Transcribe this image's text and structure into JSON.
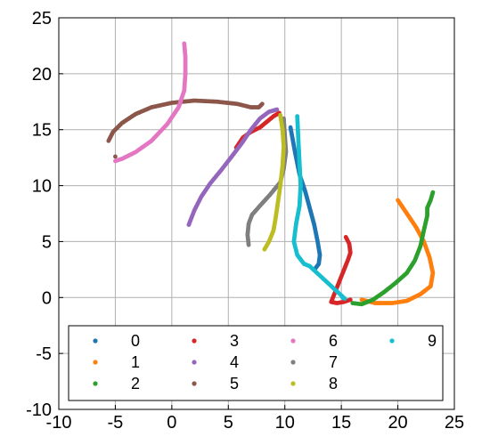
{
  "chart_data": {
    "type": "scatter",
    "title": "",
    "xlabel": "",
    "ylabel": "",
    "xlim": [
      -10,
      25
    ],
    "ylim": [
      -10,
      25
    ],
    "xticks": [
      -10,
      -5,
      0,
      5,
      10,
      15,
      20,
      25
    ],
    "yticks": [
      -10,
      -5,
      0,
      5,
      10,
      15,
      20,
      25
    ],
    "grid": true,
    "legend_position": "bottom",
    "series": [
      {
        "name": "0",
        "color": "#1f77b4",
        "points": [
          [
            10.5,
            15.2
          ],
          [
            10.9,
            13.0
          ],
          [
            11.3,
            11.0
          ],
          [
            11.8,
            9.5
          ],
          [
            12.2,
            8.0
          ],
          [
            12.6,
            6.5
          ],
          [
            12.9,
            5.0
          ],
          [
            13.1,
            3.8
          ],
          [
            13.0,
            3.0
          ],
          [
            12.7,
            2.6
          ]
        ]
      },
      {
        "name": "1",
        "color": "#ff7f0e",
        "points": [
          [
            20.0,
            8.7
          ],
          [
            20.8,
            7.5
          ],
          [
            21.6,
            6.3
          ],
          [
            22.3,
            5.0
          ],
          [
            22.8,
            3.6
          ],
          [
            23.1,
            2.2
          ],
          [
            22.9,
            1.0
          ],
          [
            22.0,
            0.3
          ],
          [
            20.8,
            -0.3
          ],
          [
            19.5,
            -0.5
          ],
          [
            18.0,
            -0.5
          ],
          [
            16.8,
            -0.2
          ]
        ]
      },
      {
        "name": "2",
        "color": "#2ca02c",
        "points": [
          [
            16.0,
            -0.5
          ],
          [
            16.8,
            -0.6
          ],
          [
            17.8,
            -0.2
          ],
          [
            18.8,
            0.5
          ],
          [
            19.8,
            1.3
          ],
          [
            20.8,
            2.2
          ],
          [
            21.5,
            3.3
          ],
          [
            22.0,
            4.6
          ],
          [
            22.3,
            6.0
          ],
          [
            22.6,
            7.3
          ],
          [
            22.6,
            8.0
          ],
          [
            22.9,
            8.7
          ],
          [
            23.1,
            9.4
          ]
        ]
      },
      {
        "name": "3",
        "color": "#d62728",
        "points": [
          [
            5.7,
            13.4
          ],
          [
            6.3,
            14.3
          ],
          [
            7.0,
            14.8
          ],
          [
            7.8,
            15.2
          ],
          [
            8.4,
            15.7
          ],
          [
            9.0,
            16.2
          ],
          [
            9.5,
            16.5
          ],
          [
            15.4,
            5.4
          ],
          [
            15.7,
            4.8
          ],
          [
            15.8,
            4.0
          ],
          [
            15.6,
            3.4
          ],
          [
            14.1,
            -0.4
          ],
          [
            14.6,
            -0.5
          ],
          [
            15.2,
            -0.4
          ],
          [
            15.8,
            -0.2
          ]
        ]
      },
      {
        "name": "4",
        "color": "#9467bd",
        "points": [
          [
            1.5,
            6.5
          ],
          [
            2.0,
            7.8
          ],
          [
            2.6,
            9.0
          ],
          [
            3.4,
            10.2
          ],
          [
            4.3,
            11.3
          ],
          [
            5.3,
            12.6
          ],
          [
            6.2,
            13.8
          ],
          [
            7.0,
            15.0
          ],
          [
            7.8,
            16.0
          ],
          [
            8.6,
            16.6
          ],
          [
            9.3,
            16.8
          ]
        ]
      },
      {
        "name": "5",
        "color": "#8c564b",
        "points": [
          [
            -5.6,
            14.0
          ],
          [
            -5.2,
            14.8
          ],
          [
            -4.4,
            15.6
          ],
          [
            -3.2,
            16.4
          ],
          [
            -1.8,
            17.0
          ],
          [
            0.0,
            17.4
          ],
          [
            2.0,
            17.6
          ],
          [
            4.0,
            17.5
          ],
          [
            5.8,
            17.3
          ],
          [
            7.0,
            17.0
          ],
          [
            7.7,
            17.0
          ],
          [
            8.0,
            17.3
          ],
          [
            -5.0,
            12.6
          ]
        ]
      },
      {
        "name": "6",
        "color": "#e377c2",
        "points": [
          [
            1.1,
            22.7
          ],
          [
            1.2,
            21.5
          ],
          [
            1.2,
            20.0
          ],
          [
            1.1,
            18.5
          ],
          [
            0.6,
            17.0
          ],
          [
            -0.4,
            15.5
          ],
          [
            -1.8,
            14.0
          ],
          [
            -3.2,
            13.0
          ],
          [
            -4.4,
            12.4
          ],
          [
            -5.0,
            12.2
          ]
        ]
      },
      {
        "name": "7",
        "color": "#7f7f7f",
        "points": [
          [
            6.8,
            4.7
          ],
          [
            6.7,
            5.6
          ],
          [
            6.8,
            6.6
          ],
          [
            7.1,
            7.4
          ],
          [
            7.8,
            8.2
          ],
          [
            8.7,
            9.2
          ],
          [
            9.6,
            10.3
          ],
          [
            9.9,
            11.5
          ],
          [
            10.1,
            13.0
          ],
          [
            10.0,
            14.5
          ],
          [
            9.9,
            16.0
          ]
        ]
      },
      {
        "name": "8",
        "color": "#bcbd22",
        "points": [
          [
            8.2,
            4.3
          ],
          [
            8.6,
            5.0
          ],
          [
            9.0,
            6.0
          ],
          [
            9.2,
            7.2
          ],
          [
            9.4,
            8.6
          ],
          [
            9.6,
            10.0
          ],
          [
            9.8,
            11.8
          ],
          [
            9.9,
            13.5
          ],
          [
            9.8,
            15.0
          ],
          [
            9.6,
            16.3
          ]
        ]
      },
      {
        "name": "9",
        "color": "#17becf",
        "points": [
          [
            11.1,
            16.2
          ],
          [
            11.2,
            14.0
          ],
          [
            11.3,
            12.0
          ],
          [
            11.4,
            10.0
          ],
          [
            11.3,
            8.2
          ],
          [
            11.0,
            6.6
          ],
          [
            10.8,
            5.0
          ],
          [
            11.1,
            3.8
          ],
          [
            11.7,
            3.0
          ],
          [
            12.2,
            2.8
          ],
          [
            15.3,
            -0.1
          ],
          [
            15.1,
            0.0
          ]
        ]
      }
    ]
  }
}
